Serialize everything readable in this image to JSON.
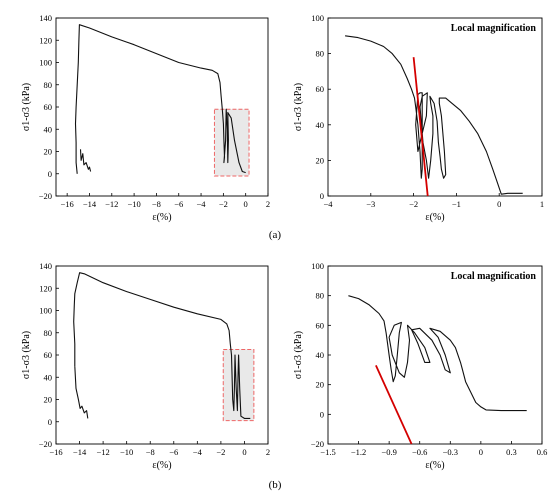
{
  "captions": [
    "(a)",
    "(b)"
  ],
  "colors": {
    "curve": "#111111",
    "trend": "#d40000",
    "highlight_fill": "#e9e9e9",
    "highlight_border": "#ee6666"
  },
  "chart_data": [
    {
      "type": "line",
      "panel": "a-left",
      "ylabel": "σ1-σ3 (kPa)",
      "xlabel": "ε(%)",
      "xlim": [
        -17,
        2
      ],
      "ylim": [
        -20,
        140
      ],
      "xticks": [
        -16,
        -14,
        -12,
        -10,
        -8,
        -6,
        -4,
        -2,
        0,
        2
      ],
      "yticks": [
        -20,
        0,
        20,
        40,
        60,
        80,
        100,
        120,
        140
      ],
      "series": [
        {
          "points": [
            [
              -15.1,
              0
            ],
            [
              -15.2,
              10
            ],
            [
              -15.2,
              28
            ],
            [
              -15.25,
              45
            ],
            [
              -15.2,
              60
            ],
            [
              -15.1,
              80
            ],
            [
              -15.0,
              100
            ],
            [
              -14.95,
              120
            ],
            [
              -14.9,
              134
            ],
            [
              -14.0,
              131
            ],
            [
              -12,
              123
            ],
            [
              -10,
              116
            ],
            [
              -8,
              108
            ],
            [
              -6,
              100
            ],
            [
              -4,
              95
            ],
            [
              -3,
              93
            ],
            [
              -2.5,
              90
            ],
            [
              -2.3,
              82
            ],
            [
              -2.2,
              70
            ],
            [
              -2.1,
              58
            ],
            [
              -2.0,
              45
            ],
            [
              -1.95,
              30
            ],
            [
              -1.9,
              15
            ],
            [
              -1.95,
              10
            ],
            [
              -1.8,
              30
            ],
            [
              -1.75,
              58
            ],
            [
              -1.65,
              40
            ],
            [
              -1.6,
              10
            ],
            [
              -1.55,
              30
            ],
            [
              -1.6,
              55
            ],
            [
              -1.3,
              50
            ],
            [
              -1.0,
              30
            ],
            [
              -0.6,
              10
            ],
            [
              -0.3,
              2
            ],
            [
              0,
              1
            ]
          ]
        },
        {
          "points": [
            [
              -14.8,
              22
            ],
            [
              -14.75,
              12
            ],
            [
              -14.6,
              18
            ],
            [
              -14.5,
              8
            ],
            [
              -14.3,
              10
            ],
            [
              -14.1,
              4
            ],
            [
              -14.0,
              6
            ],
            [
              -13.9,
              2
            ]
          ]
        }
      ],
      "highlight_box": {
        "x": [
          -2.8,
          0.3
        ],
        "y": [
          -2,
          58
        ]
      }
    },
    {
      "type": "line",
      "panel": "a-right",
      "annotation": "Local magnification",
      "ylabel": "σ1-σ3 (kPa)",
      "xlabel": "ε(%)",
      "xlim": [
        -4,
        1
      ],
      "ylim": [
        0,
        100
      ],
      "xticks": [
        -4,
        -3,
        -2,
        -1,
        0,
        1
      ],
      "yticks": [
        0,
        20,
        40,
        60,
        80,
        100
      ],
      "series": [
        {
          "points": [
            [
              -3.6,
              90
            ],
            [
              -3.3,
              89
            ],
            [
              -3.0,
              87
            ],
            [
              -2.7,
              84
            ],
            [
              -2.5,
              80
            ],
            [
              -2.3,
              74
            ],
            [
              -2.15,
              66
            ],
            [
              -2.05,
              60
            ],
            [
              -1.98,
              55
            ],
            [
              -1.95,
              50
            ],
            [
              -1.9,
              40
            ],
            [
              -1.85,
              25
            ],
            [
              -1.82,
              10
            ],
            [
              -1.8,
              15
            ],
            [
              -1.8,
              30
            ],
            [
              -1.8,
              50
            ],
            [
              -1.8,
              58
            ],
            [
              -1.85,
              58
            ],
            [
              -1.9,
              57
            ],
            [
              -1.95,
              40
            ],
            [
              -1.9,
              25
            ],
            [
              -1.85,
              30
            ],
            [
              -1.75,
              40
            ],
            [
              -1.7,
              45
            ],
            [
              -1.68,
              58
            ],
            [
              -1.8,
              56
            ],
            [
              -1.85,
              50
            ],
            [
              -1.78,
              30
            ],
            [
              -1.7,
              20
            ],
            [
              -1.65,
              10
            ],
            [
              -1.6,
              20
            ],
            [
              -1.55,
              35
            ],
            [
              -1.55,
              45
            ],
            [
              -1.6,
              52
            ],
            [
              -1.62,
              56
            ],
            [
              -1.52,
              52
            ],
            [
              -1.45,
              42
            ],
            [
              -1.42,
              30
            ],
            [
              -1.38,
              22
            ],
            [
              -1.35,
              15
            ],
            [
              -1.3,
              10
            ],
            [
              -1.25,
              12
            ],
            [
              -1.28,
              25
            ],
            [
              -1.35,
              45
            ],
            [
              -1.4,
              52
            ],
            [
              -1.4,
              55
            ],
            [
              -1.25,
              55
            ],
            [
              -1.1,
              52
            ],
            [
              -0.9,
              48
            ],
            [
              -0.7,
              42
            ],
            [
              -0.5,
              35
            ],
            [
              -0.3,
              25
            ],
            [
              -0.15,
              15
            ],
            [
              -0.05,
              8
            ],
            [
              0.05,
              1
            ],
            [
              0.2,
              1.5
            ],
            [
              0.35,
              1.5
            ],
            [
              0.55,
              1.5
            ]
          ]
        }
      ],
      "trend_line": [
        [
          -2.0,
          78
        ],
        [
          -1.67,
          0
        ]
      ]
    },
    {
      "type": "line",
      "panel": "b-left",
      "ylabel": "σ1-σ3 (kPa)",
      "xlabel": "ε(%)",
      "xlim": [
        -16,
        2
      ],
      "ylim": [
        -20,
        140
      ],
      "xticks": [
        -16,
        -14,
        -12,
        -10,
        -8,
        -6,
        -4,
        -2,
        0,
        2
      ],
      "yticks": [
        -20,
        0,
        20,
        40,
        60,
        80,
        100,
        120,
        140
      ],
      "series": [
        {
          "points": [
            [
              -14.4,
              50
            ],
            [
              -14.4,
              70
            ],
            [
              -14.5,
              90
            ],
            [
              -14.45,
              105
            ],
            [
              -14.4,
              115
            ],
            [
              -14.2,
              125
            ],
            [
              -14.0,
              134
            ],
            [
              -13.6,
              133
            ],
            [
              -12,
              125
            ],
            [
              -10,
              117
            ],
            [
              -8,
              110
            ],
            [
              -6,
              103
            ],
            [
              -4,
              97
            ],
            [
              -2,
              92
            ],
            [
              -1.5,
              88
            ],
            [
              -1.3,
              82
            ],
            [
              -1.2,
              70
            ],
            [
              -1.1,
              60
            ],
            [
              -1.05,
              40
            ],
            [
              -1.0,
              20
            ],
            [
              -0.9,
              10
            ],
            [
              -0.85,
              30
            ],
            [
              -0.8,
              60
            ],
            [
              -0.7,
              30
            ],
            [
              -0.6,
              10
            ],
            [
              -0.55,
              40
            ],
            [
              -0.5,
              60
            ],
            [
              -0.4,
              30
            ],
            [
              -0.3,
              5
            ],
            [
              0,
              3
            ],
            [
              0.5,
              3
            ]
          ]
        },
        {
          "points": [
            [
              -14.4,
              50
            ],
            [
              -14.3,
              30
            ],
            [
              -14.1,
              20
            ],
            [
              -13.95,
              12
            ],
            [
              -13.8,
              14
            ],
            [
              -13.6,
              8
            ],
            [
              -13.4,
              10
            ],
            [
              -13.3,
              3
            ]
          ]
        }
      ],
      "highlight_box": {
        "x": [
          -1.8,
          0.8
        ],
        "y": [
          1,
          65
        ]
      }
    },
    {
      "type": "line",
      "panel": "b-right",
      "annotation": "Local magnification",
      "ylabel": "σ1-σ3 (kPa)",
      "xlabel": "ε(%)",
      "xlim": [
        -1.5,
        0.6
      ],
      "ylim": [
        -20,
        100
      ],
      "xticks": [
        -1.5,
        -1.2,
        -0.9,
        -0.6,
        -0.3,
        0.0,
        0.3,
        0.6
      ],
      "yticks": [
        -20,
        0,
        20,
        40,
        60,
        80,
        100
      ],
      "series": [
        {
          "points": [
            [
              -1.3,
              80
            ],
            [
              -1.2,
              78
            ],
            [
              -1.1,
              74
            ],
            [
              -1.0,
              68
            ],
            [
              -0.95,
              63
            ],
            [
              -0.93,
              55
            ],
            [
              -0.9,
              40
            ],
            [
              -0.88,
              30
            ],
            [
              -0.86,
              22
            ],
            [
              -0.84,
              26
            ],
            [
              -0.82,
              40
            ],
            [
              -0.8,
              55
            ],
            [
              -0.78,
              62
            ],
            [
              -0.85,
              60
            ],
            [
              -0.9,
              52
            ],
            [
              -0.87,
              40
            ],
            [
              -0.8,
              28
            ],
            [
              -0.75,
              25
            ],
            [
              -0.72,
              35
            ],
            [
              -0.7,
              50
            ],
            [
              -0.72,
              60
            ],
            [
              -0.65,
              55
            ],
            [
              -0.55,
              45
            ],
            [
              -0.5,
              35
            ],
            [
              -0.55,
              35
            ],
            [
              -0.62,
              48
            ],
            [
              -0.68,
              57
            ],
            [
              -0.6,
              58
            ],
            [
              -0.48,
              50
            ],
            [
              -0.4,
              40
            ],
            [
              -0.35,
              30
            ],
            [
              -0.3,
              28
            ],
            [
              -0.35,
              40
            ],
            [
              -0.42,
              52
            ],
            [
              -0.5,
              58
            ],
            [
              -0.4,
              56
            ],
            [
              -0.3,
              50
            ],
            [
              -0.25,
              45
            ],
            [
              -0.2,
              35
            ],
            [
              -0.18,
              30
            ],
            [
              -0.15,
              22
            ],
            [
              -0.1,
              15
            ],
            [
              -0.05,
              8
            ],
            [
              0.0,
              5
            ],
            [
              0.05,
              3
            ],
            [
              0.2,
              2.5
            ],
            [
              0.45,
              2.5
            ]
          ]
        }
      ],
      "trend_line": [
        [
          -1.03,
          33
        ],
        [
          -0.68,
          -20
        ]
      ]
    }
  ]
}
